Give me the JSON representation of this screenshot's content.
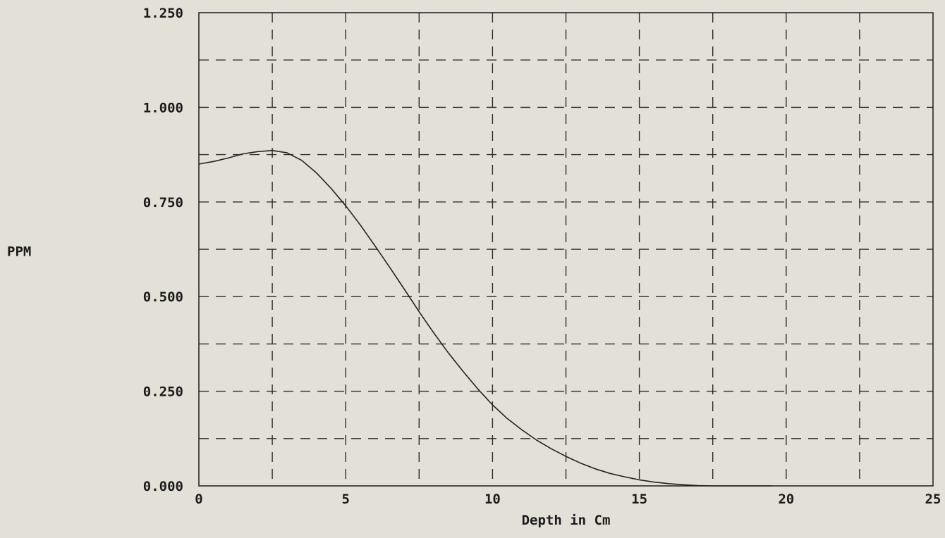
{
  "chart_data": {
    "type": "line",
    "title": "",
    "xlabel": "Depth in Cm",
    "ylabel": "PPM",
    "xlim": [
      0,
      25
    ],
    "ylim": [
      0,
      1.25
    ],
    "x_ticks": [
      0,
      5,
      10,
      15,
      20,
      25
    ],
    "x_tick_labels": [
      "0",
      "5",
      "10",
      "15",
      "20",
      "25"
    ],
    "y_ticks": [
      0,
      0.25,
      0.5,
      0.75,
      1.0,
      1.25
    ],
    "y_tick_labels": [
      "0.000",
      "0.250",
      "0.500",
      "0.750",
      "1.000",
      "1.250"
    ],
    "grid": true,
    "grid_x_step": 2.5,
    "grid_y_step": 0.125,
    "grid_style": "dashed",
    "line_color": "#222222",
    "background_color": "#e3e0d7",
    "series": [
      {
        "x": [
          0,
          0.5,
          1,
          1.5,
          2,
          2.5,
          3,
          3.5,
          4,
          4.5,
          5,
          5.5,
          6,
          6.5,
          7,
          7.5,
          8,
          8.5,
          9,
          9.5,
          10,
          10.5,
          11,
          11.5,
          12,
          12.5,
          13,
          13.5,
          14,
          14.5,
          15,
          15.5,
          16,
          16.5,
          17,
          17.5,
          18,
          18.5,
          19,
          19.5
        ],
        "values": [
          0.85,
          0.857,
          0.866,
          0.877,
          0.883,
          0.886,
          0.88,
          0.86,
          0.827,
          0.786,
          0.74,
          0.689,
          0.634,
          0.577,
          0.519,
          0.46,
          0.404,
          0.351,
          0.302,
          0.256,
          0.214,
          0.178,
          0.148,
          0.121,
          0.098,
          0.078,
          0.06,
          0.045,
          0.033,
          0.024,
          0.016,
          0.01,
          0.006,
          0.003,
          0.001,
          0.0,
          0.0,
          0.0,
          0.0,
          0.0
        ]
      }
    ]
  }
}
